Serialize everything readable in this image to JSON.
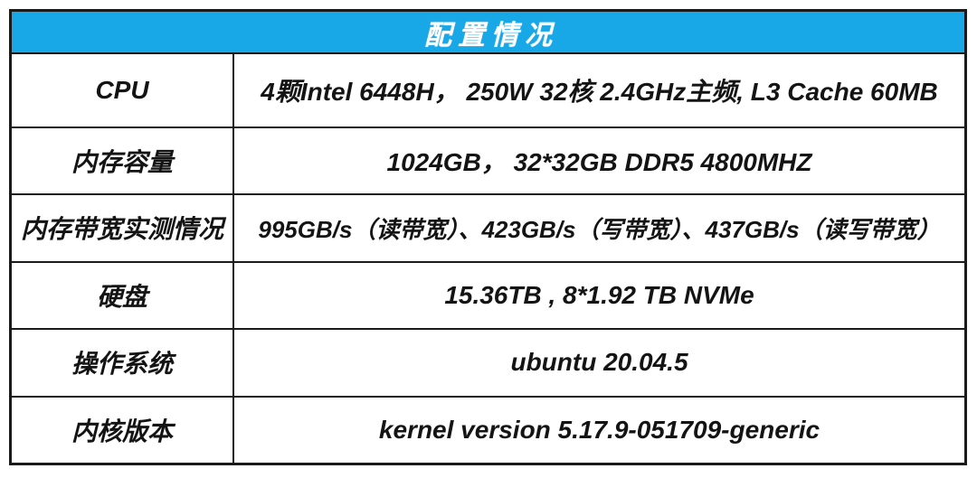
{
  "chart_data": {
    "type": "table",
    "title": "配置情况",
    "rows": [
      {
        "label": "CPU",
        "value": "4颗Intel 6448H， 250W 32核 2.4GHz主频, L3 Cache 60MB"
      },
      {
        "label": "内存容量",
        "value": "1024GB， 32*32GB DDR5 4800MHZ"
      },
      {
        "label": "内存带宽实测情况",
        "value": "995GB/s（读带宽）、423GB/s（写带宽）、437GB/s（读写带宽）"
      },
      {
        "label": "硬盘",
        "value": "15.36TB , 8*1.92 TB NVMe"
      },
      {
        "label": "操作系统",
        "value": "ubuntu 20.04.5"
      },
      {
        "label": "内核版本",
        "value": "kernel version 5.17.9-051709-generic"
      }
    ],
    "layout": {
      "columns": 2,
      "header_spans_full_width": true,
      "grid": "on"
    }
  },
  "colors": {
    "header_bg": "#18a8e8",
    "header_text": "#ffffff",
    "border": "#1a1a1a",
    "cell_text": "#141414",
    "page_bg": "#ffffff"
  }
}
